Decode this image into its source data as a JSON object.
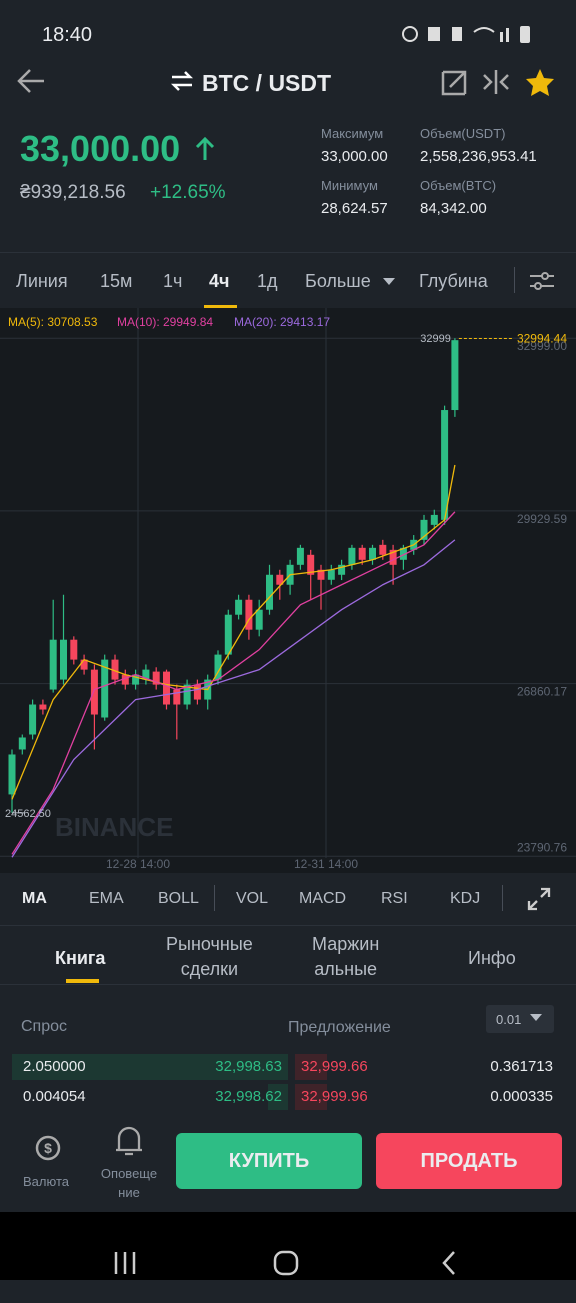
{
  "status": {
    "time": "18:40"
  },
  "header": {
    "pair": "BTC / USDT"
  },
  "price": {
    "last": "33,000.00",
    "fiat": "₴939,218.56",
    "change": "+12.65%"
  },
  "stats": [
    {
      "label": "Максимум",
      "value": "33,000.00"
    },
    {
      "label": "Объем(USDT)",
      "value": "2,558,236,953.41"
    },
    {
      "label": "Минимум",
      "value": "28,624.57"
    },
    {
      "label": "Объем(BTC)",
      "value": "84,342.00"
    }
  ],
  "tabs": [
    "Линия",
    "15м",
    "1ч",
    "4ч",
    "1д",
    "Больше",
    "Глубина"
  ],
  "chart_data": {
    "type": "candlestick",
    "ma_legend": [
      "MA(5): 30708.53",
      "MA(10): 29949.84",
      "MA(20): 29413.17"
    ],
    "ylim": [
      23760,
      33500
    ],
    "yticks": [
      {
        "value": 32999,
        "label": "32999.00"
      },
      29929.59,
      26860.17,
      23790.76
    ],
    "xticks": [
      "12-28 14:00",
      "12-31 14:00"
    ],
    "last_price": 32994.44,
    "low": {
      "value": 24562.5,
      "label": "24562.50"
    },
    "watermark": "BINANCE",
    "up_color": "#2ebd85",
    "down_color": "#f6465d",
    "candles": [
      {
        "o": 24890,
        "h": 25689,
        "l": 24562.5,
        "c": 25600
      },
      {
        "o": 25689,
        "h": 25955,
        "l": 25600,
        "c": 25902
      },
      {
        "o": 25955,
        "h": 26576,
        "l": 25867,
        "c": 26488
      },
      {
        "o": 26488,
        "h": 26576,
        "l": 26310,
        "c": 26399
      },
      {
        "o": 26754,
        "h": 28350,
        "l": 26700,
        "c": 27640
      },
      {
        "o": 26931,
        "h": 28439,
        "l": 26842,
        "c": 27640
      },
      {
        "o": 27640,
        "h": 27700,
        "l": 27200,
        "c": 27286
      },
      {
        "o": 27286,
        "h": 27375,
        "l": 27020,
        "c": 27108
      },
      {
        "o": 27108,
        "h": 27200,
        "l": 25689,
        "c": 26310
      },
      {
        "o": 26257,
        "h": 27375,
        "l": 26200,
        "c": 27286
      },
      {
        "o": 27286,
        "h": 27375,
        "l": 26842,
        "c": 26931
      },
      {
        "o": 27020,
        "h": 27108,
        "l": 26754,
        "c": 26842
      },
      {
        "o": 26842,
        "h": 27108,
        "l": 26754,
        "c": 27020
      },
      {
        "o": 26931,
        "h": 27200,
        "l": 26842,
        "c": 27108
      },
      {
        "o": 27073,
        "h": 27150,
        "l": 26754,
        "c": 26842
      },
      {
        "o": 27073,
        "h": 27108,
        "l": 26400,
        "c": 26488
      },
      {
        "o": 26754,
        "h": 26842,
        "l": 25867,
        "c": 26488
      },
      {
        "o": 26488,
        "h": 26931,
        "l": 26400,
        "c": 26842
      },
      {
        "o": 26842,
        "h": 26931,
        "l": 26488,
        "c": 26576
      },
      {
        "o": 26576,
        "h": 27020,
        "l": 26399,
        "c": 26931
      },
      {
        "o": 26931,
        "h": 27450,
        "l": 26842,
        "c": 27375
      },
      {
        "o": 27375,
        "h": 28173,
        "l": 27286,
        "c": 28084
      },
      {
        "o": 28084,
        "h": 28439,
        "l": 28000,
        "c": 28350
      },
      {
        "o": 28350,
        "h": 28439,
        "l": 27640,
        "c": 27818
      },
      {
        "o": 27818,
        "h": 28350,
        "l": 27700,
        "c": 28173
      },
      {
        "o": 28173,
        "h": 28971,
        "l": 28084,
        "c": 28794
      },
      {
        "o": 28794,
        "h": 28883,
        "l": 28350,
        "c": 28617
      },
      {
        "o": 28617,
        "h": 29060,
        "l": 28439,
        "c": 28971
      },
      {
        "o": 28971,
        "h": 29326,
        "l": 28883,
        "c": 29273
      },
      {
        "o": 29149,
        "h": 29237,
        "l": 28350,
        "c": 28794
      },
      {
        "o": 28883,
        "h": 28971,
        "l": 28173,
        "c": 28705
      },
      {
        "o": 28705,
        "h": 28971,
        "l": 28617,
        "c": 28883
      },
      {
        "o": 28794,
        "h": 29060,
        "l": 28700,
        "c": 28971
      },
      {
        "o": 28971,
        "h": 29326,
        "l": 28883,
        "c": 29273
      },
      {
        "o": 29273,
        "h": 29326,
        "l": 28971,
        "c": 29060
      },
      {
        "o": 29060,
        "h": 29326,
        "l": 28971,
        "c": 29273
      },
      {
        "o": 29326,
        "h": 29415,
        "l": 29060,
        "c": 29149
      },
      {
        "o": 29237,
        "h": 29326,
        "l": 28617,
        "c": 28971
      },
      {
        "o": 29060,
        "h": 29326,
        "l": 28883,
        "c": 29273
      },
      {
        "o": 29237,
        "h": 29500,
        "l": 29149,
        "c": 29415
      },
      {
        "o": 29415,
        "h": 29858,
        "l": 29326,
        "c": 29770
      },
      {
        "o": 29681,
        "h": 29950,
        "l": 29600,
        "c": 29858
      },
      {
        "o": 29770,
        "h": 31800,
        "l": 29681,
        "c": 31722
      },
      {
        "o": 31722,
        "h": 32999,
        "l": 31600,
        "c": 32964
      }
    ],
    "series": [
      {
        "name": "MA(5)",
        "color": "#f0b90b",
        "x": [
          0,
          4,
          7,
          11,
          15,
          19,
          23,
          27,
          31,
          35,
          39,
          42,
          43
        ],
        "values": [
          24802,
          26576,
          27286,
          27020,
          26842,
          26754,
          27996,
          28794,
          28883,
          29060,
          29326,
          29770,
          30746
        ]
      },
      {
        "name": "MA(10)",
        "color": "#e040a0",
        "x": [
          0,
          4,
          8,
          12,
          16,
          20,
          24,
          28,
          32,
          36,
          40,
          43
        ],
        "values": [
          23826,
          24979,
          26754,
          27020,
          26754,
          26931,
          27463,
          28261,
          28617,
          28971,
          29326,
          29912
        ]
      },
      {
        "name": "MA(20)",
        "color": "#9c6ade",
        "x": [
          0,
          6,
          12,
          18,
          24,
          28,
          32,
          36,
          40,
          43
        ],
        "values": [
          23773,
          25511,
          26576,
          26754,
          27108,
          27640,
          28173,
          28617,
          28971,
          29415
        ]
      }
    ]
  },
  "indicators": [
    "MA",
    "EMA",
    "BOLL",
    "VOL",
    "MACD",
    "RSI",
    "KDJ"
  ],
  "sections": [
    "Книга",
    "Рыночные\nсделки",
    "Маржин\nальные",
    "Инфо"
  ],
  "orderbook": {
    "bid_label": "Спрос",
    "ask_label": "Предложение",
    "precision": "0.01",
    "rows": [
      {
        "bid_qty": "2.050000",
        "bid_price": "32,998.63",
        "ask_price": "32,999.66",
        "ask_qty": "0.361713"
      },
      {
        "bid_qty": "0.004054",
        "bid_price": "32,998.62",
        "ask_price": "32,999.96",
        "ask_qty": "0.000335"
      }
    ]
  },
  "bottom": {
    "currency": "Валюта",
    "alerts": "Оповеще\nние",
    "buy": "КУПИТЬ",
    "sell": "ПРОДАТЬ"
  }
}
